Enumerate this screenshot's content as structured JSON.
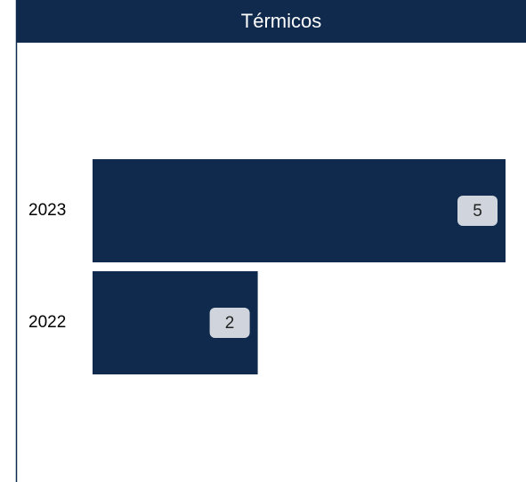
{
  "chart_data": {
    "type": "barh",
    "title": "Térmicos",
    "categories": [
      "2023",
      "2022"
    ],
    "values": [
      5,
      2
    ],
    "color": "#0f2a4d"
  }
}
